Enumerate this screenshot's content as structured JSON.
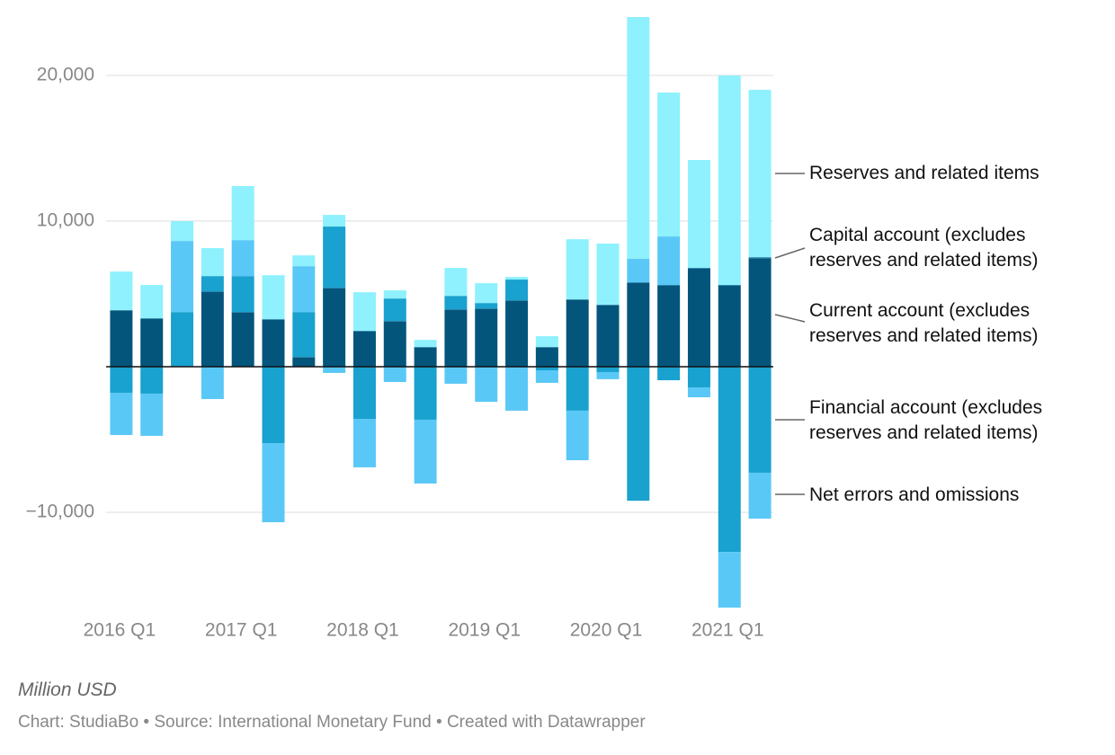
{
  "chart_data": {
    "type": "stacked_bar",
    "categories": [
      "2016 Q1",
      null,
      null,
      null,
      "2017 Q1",
      null,
      null,
      null,
      "2018 Q1",
      null,
      null,
      null,
      "2019 Q1",
      null,
      null,
      null,
      "2020 Q1",
      null,
      null,
      null,
      "2021 Q1",
      null
    ],
    "series": [
      {
        "name": "Current account (excludes reserves and related items)",
        "color": "#03557c",
        "values": [
          3830,
          3270,
          0,
          5120,
          3700,
          3210,
          620,
          5370,
          2410,
          3090,
          1300,
          3890,
          3950,
          4510,
          1300,
          4570,
          4200,
          5740,
          5560,
          6730,
          5560,
          7410
        ]
      },
      {
        "name": "Capital account (excludes reserves and related items)",
        "color": "#0e6a93",
        "values": [
          50,
          50,
          50,
          50,
          50,
          50,
          50,
          50,
          50,
          50,
          50,
          50,
          50,
          50,
          50,
          50,
          50,
          50,
          50,
          50,
          50,
          100
        ]
      },
      {
        "name": "Financial account (excludes reserves and related items)",
        "color": "#19a1cf",
        "values": [
          -1790,
          -1850,
          3700,
          1050,
          2470,
          -5250,
          3080,
          4200,
          -3580,
          1540,
          -3640,
          920,
          370,
          1420,
          -250,
          -3020,
          -370,
          -9200,
          -930,
          -1420,
          -12720,
          -7280
        ]
      },
      {
        "name": "Net errors and omissions",
        "color": "#5ac8f6",
        "values": [
          -2900,
          -2900,
          4880,
          -2220,
          2470,
          -5430,
          3150,
          -430,
          -3330,
          -1050,
          -4380,
          -1170,
          -2410,
          -3020,
          -860,
          -3400,
          -490,
          1610,
          3330,
          -680,
          -3820,
          -3150
        ]
      },
      {
        "name": "Reserves and related items",
        "color": "#8ef1fd",
        "values": [
          2650,
          2290,
          1360,
          1920,
          3710,
          3020,
          740,
          800,
          2650,
          560,
          490,
          1920,
          1360,
          180,
          740,
          4130,
          4200,
          16600,
          9880,
          7410,
          14380,
          11500
        ]
      }
    ],
    "ylim": [
      -16600,
      24000
    ],
    "yticks": [
      {
        "value": 20000,
        "label": "20,000"
      },
      {
        "value": 10000,
        "label": "10,000"
      },
      {
        "value": -10000,
        "label": "−10,000"
      }
    ],
    "grid": true,
    "axis_label": "Million USD",
    "footer": "Chart: StudiaBo • Source: International Monetary Fund • Created with Datawrapper"
  }
}
